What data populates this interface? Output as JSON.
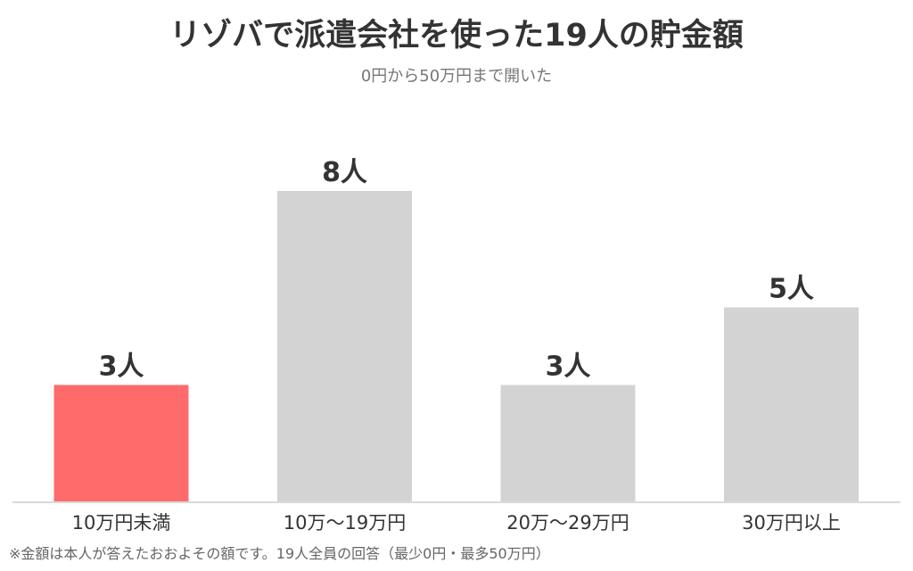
{
  "header": {
    "title": "リゾバで派遣会社を使った19人の貯金額",
    "subtitle": "0円から50万円まで開いた"
  },
  "footnote": "※金額は本人が答えたおおよその額です。19人全員の回答（最少0円・最多50万円）",
  "colors": {
    "highlight": "#FF6B6B",
    "default": "#D3D3D3",
    "text": "#333333",
    "baseline": "#D9D9D9"
  },
  "chart_data": {
    "type": "bar",
    "title": "リゾバで派遣会社を使った19人の貯金額",
    "subtitle": "0円から50万円まで開いた",
    "categories": [
      "10万円未満",
      "10万〜19万円",
      "20万〜29万円",
      "30万円以上"
    ],
    "values": [
      3,
      8,
      3,
      5
    ],
    "data_labels": [
      "3人",
      "8人",
      "3人",
      "5人"
    ],
    "highlight_index": 0,
    "unit": "人",
    "xlabel": "",
    "ylabel": "",
    "ylim": [
      0,
      9
    ],
    "grid": false,
    "legend": "none"
  }
}
